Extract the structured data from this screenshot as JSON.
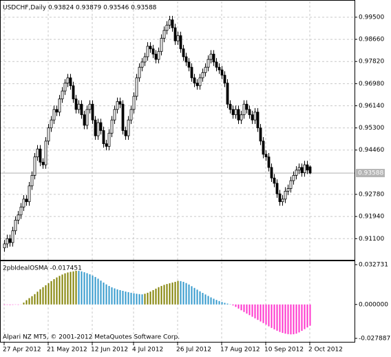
{
  "chart_data": [
    {
      "type": "candlestick",
      "title": "USDCHF,Daily  0.93824 0.93879 0.93546 0.93588",
      "categories": [
        "27 Apr 2012",
        null,
        null,
        null,
        null,
        null,
        null,
        null,
        null,
        null,
        null,
        null,
        null,
        null,
        null,
        null,
        "21 May 2012",
        null,
        null,
        null,
        null,
        null,
        null,
        null,
        null,
        null,
        null,
        null,
        null,
        null,
        null,
        null,
        "12 Jun 2012",
        null,
        null,
        null,
        null,
        null,
        null,
        null,
        null,
        null,
        null,
        null,
        null,
        null,
        null,
        "4 Jul 2012",
        null,
        null,
        null,
        null,
        null,
        null,
        null,
        null,
        null,
        null,
        null,
        null,
        null,
        null,
        null,
        "26 Jul 2012",
        null,
        null,
        null,
        null,
        null,
        null,
        null,
        null,
        null,
        null,
        null,
        null,
        null,
        null,
        null,
        "17 Aug 2012",
        null,
        null,
        null,
        null,
        null,
        null,
        null,
        null,
        null,
        null,
        null,
        null,
        null,
        null,
        null,
        "10 Sep 2012",
        null,
        null,
        null,
        null,
        null,
        null,
        null,
        null,
        null,
        null,
        null,
        null,
        null,
        null,
        null,
        "2 Oct 2012"
      ],
      "open": [
        0.9075,
        0.909,
        0.911,
        0.9095,
        0.914,
        0.918,
        0.92,
        0.923,
        0.926,
        0.925,
        0.931,
        0.935,
        0.942,
        0.945,
        0.94,
        0.939,
        0.948,
        0.953,
        0.956,
        0.96,
        0.959,
        0.964,
        0.967,
        0.97,
        0.972,
        0.969,
        0.964,
        0.96,
        0.962,
        0.958,
        0.954,
        0.96,
        0.962,
        0.956,
        0.95,
        0.955,
        0.952,
        0.947,
        0.946,
        0.951,
        0.956,
        0.96,
        0.963,
        0.962,
        0.952,
        0.95,
        0.956,
        0.96,
        0.965,
        0.972,
        0.976,
        0.978,
        0.98,
        0.984,
        0.983,
        0.981,
        0.979,
        0.982,
        0.987,
        0.99,
        0.992,
        0.994,
        0.991,
        0.986,
        0.988,
        0.983,
        0.98,
        0.978,
        0.976,
        0.972,
        0.97,
        0.969,
        0.972,
        0.974,
        0.976,
        0.979,
        0.981,
        0.978,
        0.976,
        0.975,
        0.973,
        0.97,
        0.962,
        0.96,
        0.958,
        0.96,
        0.956,
        0.958,
        0.962,
        0.96,
        0.958,
        0.956,
        0.959,
        0.953,
        0.948,
        0.943,
        0.942,
        0.938,
        0.934,
        0.932,
        0.928,
        0.925,
        0.926,
        0.929,
        0.93,
        0.933,
        0.935,
        0.937,
        0.938,
        0.936,
        0.939,
        0.93824
      ],
      "high": [
        0.9105,
        0.9125,
        0.9125,
        0.9155,
        0.9195,
        0.9215,
        0.9245,
        0.9275,
        0.9275,
        0.9325,
        0.9365,
        0.9435,
        0.9465,
        0.9465,
        0.9415,
        0.9495,
        0.9545,
        0.9575,
        0.9615,
        0.9615,
        0.9655,
        0.9685,
        0.9715,
        0.9735,
        0.9735,
        0.9705,
        0.9655,
        0.9635,
        0.9635,
        0.9595,
        0.9615,
        0.9635,
        0.9635,
        0.9575,
        0.9565,
        0.9565,
        0.9535,
        0.9485,
        0.9525,
        0.9575,
        0.9615,
        0.9645,
        0.9645,
        0.9635,
        0.9535,
        0.9575,
        0.9615,
        0.9665,
        0.9735,
        0.9775,
        0.9795,
        0.9815,
        0.9855,
        0.9855,
        0.9845,
        0.9825,
        0.9835,
        0.9885,
        0.9915,
        0.9935,
        0.9955,
        0.9955,
        0.9925,
        0.9895,
        0.9895,
        0.9845,
        0.9815,
        0.9795,
        0.9775,
        0.9735,
        0.9715,
        0.9735,
        0.9755,
        0.9775,
        0.9805,
        0.9825,
        0.9825,
        0.9795,
        0.9775,
        0.9765,
        0.9745,
        0.9715,
        0.9635,
        0.9615,
        0.9615,
        0.9615,
        0.9595,
        0.9635,
        0.9635,
        0.9615,
        0.9595,
        0.9605,
        0.9605,
        0.9545,
        0.9495,
        0.9445,
        0.9435,
        0.9395,
        0.9355,
        0.9335,
        0.9295,
        0.9275,
        0.9305,
        0.9315,
        0.9345,
        0.9365,
        0.9385,
        0.9395,
        0.9395,
        0.9405,
        0.9405,
        0.93879
      ],
      "low": [
        0.906,
        0.9075,
        0.908,
        0.908,
        0.9125,
        0.9165,
        0.9185,
        0.9215,
        0.9235,
        0.9235,
        0.9295,
        0.9335,
        0.9405,
        0.9385,
        0.9375,
        0.9375,
        0.9465,
        0.9515,
        0.9545,
        0.9575,
        0.9575,
        0.9625,
        0.9655,
        0.9685,
        0.9675,
        0.9625,
        0.9585,
        0.9585,
        0.9565,
        0.9525,
        0.9525,
        0.9585,
        0.9545,
        0.9485,
        0.9485,
        0.9505,
        0.9455,
        0.9445,
        0.9445,
        0.9495,
        0.9545,
        0.9585,
        0.9605,
        0.9505,
        0.9485,
        0.9485,
        0.9545,
        0.9585,
        0.9635,
        0.9705,
        0.9745,
        0.9765,
        0.9785,
        0.9815,
        0.9795,
        0.9775,
        0.9775,
        0.9805,
        0.9855,
        0.9885,
        0.9905,
        0.9895,
        0.9845,
        0.9845,
        0.9815,
        0.9785,
        0.9765,
        0.9745,
        0.9705,
        0.9685,
        0.9675,
        0.9675,
        0.9705,
        0.9725,
        0.9745,
        0.9775,
        0.9765,
        0.9745,
        0.9735,
        0.9715,
        0.9685,
        0.9605,
        0.9585,
        0.9565,
        0.9565,
        0.9545,
        0.9545,
        0.9565,
        0.9585,
        0.9565,
        0.9545,
        0.9545,
        0.9515,
        0.9465,
        0.9415,
        0.9405,
        0.9365,
        0.9325,
        0.9305,
        0.9265,
        0.9235,
        0.9235,
        0.9245,
        0.9275,
        0.9285,
        0.9315,
        0.9335,
        0.9355,
        0.9345,
        0.9345,
        0.9355,
        0.93546
      ],
      "close": [
        0.909,
        0.911,
        0.9095,
        0.914,
        0.918,
        0.92,
        0.923,
        0.926,
        0.925,
        0.931,
        0.935,
        0.942,
        0.945,
        0.94,
        0.939,
        0.948,
        0.953,
        0.956,
        0.96,
        0.959,
        0.964,
        0.967,
        0.97,
        0.972,
        0.969,
        0.964,
        0.96,
        0.962,
        0.958,
        0.954,
        0.96,
        0.962,
        0.956,
        0.95,
        0.955,
        0.952,
        0.947,
        0.946,
        0.951,
        0.956,
        0.96,
        0.963,
        0.962,
        0.952,
        0.95,
        0.956,
        0.96,
        0.965,
        0.972,
        0.976,
        0.978,
        0.98,
        0.984,
        0.983,
        0.981,
        0.979,
        0.982,
        0.987,
        0.99,
        0.992,
        0.994,
        0.991,
        0.986,
        0.988,
        0.983,
        0.98,
        0.978,
        0.976,
        0.972,
        0.97,
        0.969,
        0.972,
        0.974,
        0.976,
        0.979,
        0.981,
        0.978,
        0.976,
        0.975,
        0.973,
        0.97,
        0.962,
        0.96,
        0.958,
        0.96,
        0.956,
        0.958,
        0.962,
        0.96,
        0.958,
        0.956,
        0.959,
        0.953,
        0.948,
        0.943,
        0.942,
        0.938,
        0.934,
        0.932,
        0.928,
        0.925,
        0.926,
        0.929,
        0.93,
        0.933,
        0.935,
        0.937,
        0.938,
        0.936,
        0.939,
        0.937,
        0.93588
      ],
      "last_price": 0.93588,
      "ylim": [
        0.9027,
        1.001
      ],
      "yticks": [
        {
          "value": 0.995,
          "label": "0.99500"
        },
        {
          "value": 0.9866,
          "label": "0.98660"
        },
        {
          "value": 0.9782,
          "label": "0.97820"
        },
        {
          "value": 0.9698,
          "label": "0.96980"
        },
        {
          "value": 0.9614,
          "label": "0.96140"
        },
        {
          "value": 0.953,
          "label": "0.95300"
        },
        {
          "value": 0.9446,
          "label": "0.94460"
        },
        {
          "value": 0.9278,
          "label": "0.92780"
        },
        {
          "value": 0.9194,
          "label": "0.91940"
        },
        {
          "value": 0.911,
          "label": "0.91100"
        }
      ],
      "grid": true
    },
    {
      "type": "bar",
      "title": "2pbIdealOSMA -0.017451",
      "values": [
        -0.0004,
        -0.0003,
        -0.0004,
        -0.0003,
        -0.0002,
        -0.0003,
        -0.0001,
        0.0015,
        0.0035,
        0.0052,
        0.0068,
        0.0085,
        0.0105,
        0.0125,
        0.0142,
        0.0158,
        0.0175,
        0.0192,
        0.0208,
        0.0222,
        0.0235,
        0.0246,
        0.0256,
        0.0263,
        0.0268,
        0.0272,
        0.0277,
        0.0276,
        0.0272,
        0.0265,
        0.0257,
        0.0248,
        0.0238,
        0.0226,
        0.0212,
        0.0196,
        0.018,
        0.0165,
        0.0152,
        0.0141,
        0.0132,
        0.0124,
        0.0118,
        0.0112,
        0.0106,
        0.0101,
        0.0096,
        0.0092,
        0.0088,
        0.0085,
        0.0083,
        0.0088,
        0.0096,
        0.0106,
        0.0118,
        0.013,
        0.0142,
        0.0152,
        0.0161,
        0.0168,
        0.0174,
        0.018,
        0.0186,
        0.0194,
        0.0192,
        0.0186,
        0.0176,
        0.0164,
        0.015,
        0.0136,
        0.0122,
        0.0108,
        0.0095,
        0.0082,
        0.007,
        0.0058,
        0.0047,
        0.0037,
        0.0028,
        0.002,
        0.0013,
        0.0007,
        0.0002,
        -0.0008,
        -0.002,
        -0.0034,
        -0.0048,
        -0.0062,
        -0.0075,
        -0.0088,
        -0.0101,
        -0.0114,
        -0.0127,
        -0.014,
        -0.0153,
        -0.0166,
        -0.018,
        -0.0193,
        -0.0205,
        -0.0216,
        -0.0226,
        -0.0234,
        -0.024,
        -0.0244,
        -0.0246,
        -0.0245,
        -0.024,
        -0.023,
        -0.0217,
        -0.0203,
        -0.0189,
        -0.017451
      ],
      "colors": {
        "rising": "#808000",
        "falling": "#3399cc",
        "negative": "#ff33cc"
      },
      "ylim": [
        -0.0313,
        0.035
      ],
      "yticks": [
        {
          "value": 0.032731,
          "label": "0.032731"
        },
        {
          "value": 0,
          "label": "0.000000"
        },
        {
          "value": -0.027887,
          "label": "-0.027887"
        }
      ],
      "annotations": [
        "Alpari NZ MT5, © 2001-2012 MetaQuotes Software Corp."
      ]
    }
  ]
}
